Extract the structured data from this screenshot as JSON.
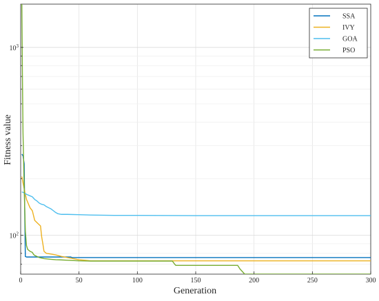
{
  "chart_data": {
    "type": "line",
    "xlabel": "Generation",
    "ylabel": "Fitness value",
    "xlim": [
      0,
      300
    ],
    "ylim": [
      62,
      1700
    ],
    "yscale": "log",
    "grid": true,
    "legend": "top-right",
    "xticks": [
      {
        "value": 0,
        "label": "0"
      },
      {
        "value": 50,
        "label": "50"
      },
      {
        "value": 100,
        "label": "100"
      },
      {
        "value": 150,
        "label": "150"
      },
      {
        "value": 200,
        "label": "200"
      },
      {
        "value": 250,
        "label": "250"
      },
      {
        "value": 300,
        "label": "300"
      }
    ],
    "yticks": [
      {
        "value": 100,
        "base": "10",
        "exp": "2"
      },
      {
        "value": 1000,
        "base": "10",
        "exp": "3"
      }
    ],
    "series": [
      {
        "name": "SSA",
        "color": "#0072BD",
        "x": [
          1,
          2,
          3,
          3.5,
          4,
          5,
          10,
          20,
          30,
          43,
          44,
          60,
          100,
          150,
          200,
          250,
          300
        ],
        "y": [
          270,
          265,
          240,
          130,
          77,
          76.5,
          76.5,
          76.5,
          76.5,
          76.5,
          76,
          76,
          76,
          76,
          76,
          76,
          76
        ]
      },
      {
        "name": "IVY",
        "color": "#EDB120",
        "x": [
          1,
          2,
          4,
          5,
          8,
          10,
          12,
          15,
          17,
          18,
          19,
          20,
          22,
          25,
          30,
          35,
          40,
          45,
          50,
          55,
          60,
          80,
          100,
          150,
          200,
          250,
          300
        ],
        "y": [
          205,
          190,
          165,
          155,
          140,
          135,
          120,
          115,
          112,
          98,
          90,
          82,
          80,
          79.5,
          78.5,
          77,
          76,
          75,
          74,
          73.5,
          73,
          73,
          73,
          73,
          73,
          73,
          73
        ]
      },
      {
        "name": "GOA",
        "color": "#4DBEEE",
        "x": [
          1,
          3,
          5,
          7,
          10,
          12,
          14,
          16,
          18,
          20,
          22,
          24,
          26,
          28,
          30,
          32,
          35,
          40,
          50,
          60,
          80,
          100,
          150,
          200,
          250,
          300
        ],
        "y": [
          170,
          168,
          165,
          163,
          160,
          155,
          152,
          148,
          146,
          145,
          142,
          140,
          138,
          135,
          132,
          130,
          129,
          129,
          128.5,
          128,
          127.5,
          127.5,
          127,
          127,
          127,
          127
        ]
      },
      {
        "name": "PSO",
        "color": "#77AC30",
        "x": [
          1,
          1.5,
          2,
          3,
          4,
          5,
          6,
          8,
          10,
          11,
          12,
          14,
          16,
          18,
          20,
          25,
          30,
          35,
          40,
          50,
          60,
          80,
          100,
          130,
          132,
          133,
          150,
          186,
          188,
          190,
          192,
          200,
          250,
          300
        ],
        "y": [
          1700,
          700,
          350,
          180,
          105,
          88,
          84,
          82,
          81,
          79,
          78,
          77,
          76,
          75.5,
          75,
          74.5,
          74,
          73.8,
          73.5,
          73,
          72.8,
          72.8,
          72.8,
          72.8,
          70,
          69,
          69,
          69,
          66,
          64,
          62,
          62,
          62,
          62
        ]
      }
    ]
  }
}
